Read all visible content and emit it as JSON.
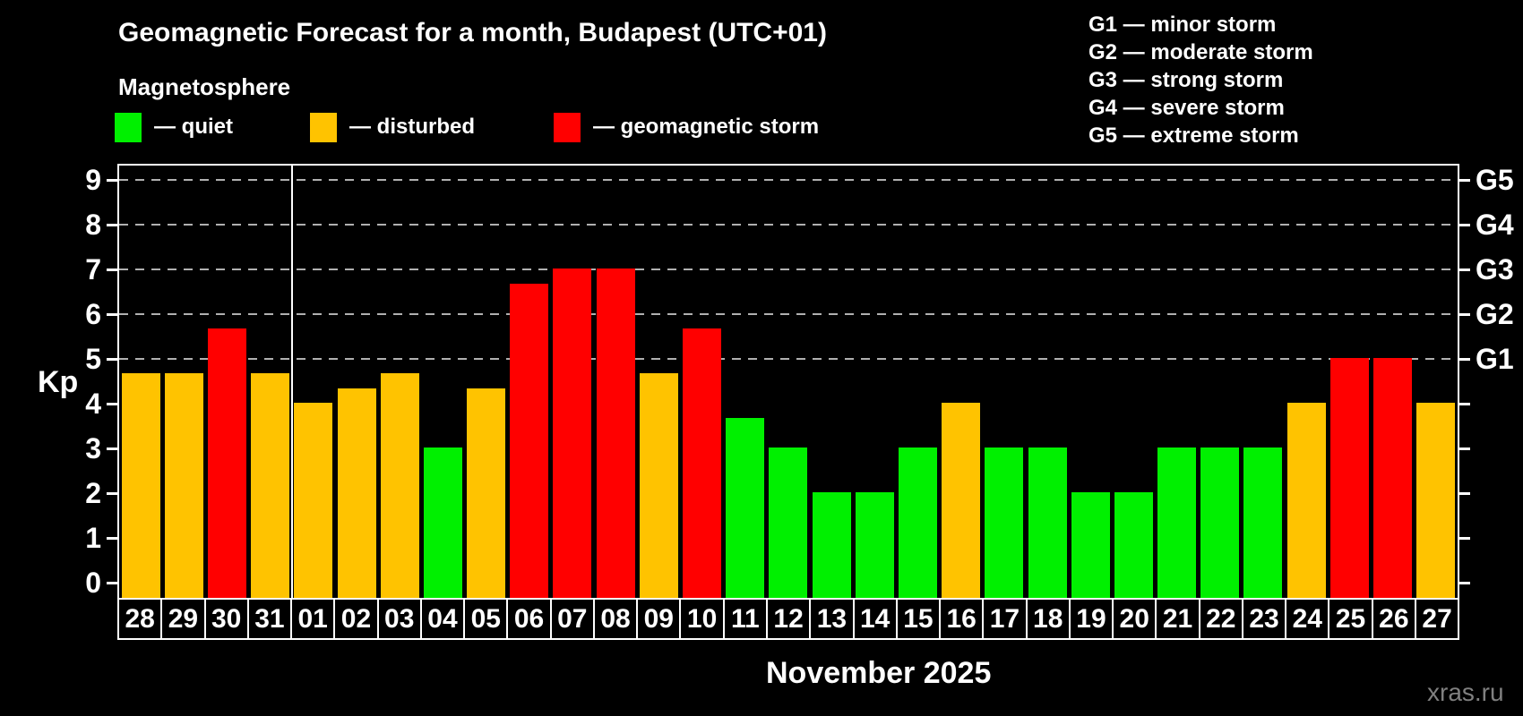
{
  "title": "Geomagnetic Forecast for a month, Budapest (UTC+01)",
  "subtitle": "Magnetosphere",
  "mag_legend": {
    "items": [
      {
        "state": "quiet",
        "label": "— quiet"
      },
      {
        "state": "disturbed",
        "label": "— disturbed"
      },
      {
        "state": "storm",
        "label": "— geomagnetic storm"
      }
    ]
  },
  "g_scale": {
    "lines": [
      {
        "label": "G1 — minor storm"
      },
      {
        "label": "G2 — moderate storm"
      },
      {
        "label": "G3 — strong storm"
      },
      {
        "label": "G4 — severe storm"
      },
      {
        "label": "G5 — extreme storm"
      }
    ]
  },
  "watermark": "xras.ru",
  "chart_data": {
    "type": "bar",
    "title": "Geomagnetic Forecast for a month, Budapest (UTC+01)",
    "xlabel": "November 2025",
    "ylabel": "Kp",
    "ylim": [
      0,
      9
    ],
    "yticks": [
      0,
      1,
      2,
      3,
      4,
      5,
      6,
      7,
      8,
      9
    ],
    "gridlines_at": [
      5,
      6,
      7,
      8,
      9
    ],
    "grid": "dashed horizontal at storm levels only",
    "legend_position": "top",
    "right_axis": [
      {
        "kp": 5,
        "label": "G1"
      },
      {
        "kp": 6,
        "label": "G2"
      },
      {
        "kp": 7,
        "label": "G3"
      },
      {
        "kp": 8,
        "label": "G4"
      },
      {
        "kp": 9,
        "label": "G5"
      }
    ],
    "month_label": "November 2025",
    "month_divider_after_index": 3,
    "colors": {
      "quiet": "#00f000",
      "disturbed": "#ffc300",
      "storm": "#ff0000"
    },
    "bars": [
      {
        "day": "28",
        "kp": 4.67,
        "state": "disturbed"
      },
      {
        "day": "29",
        "kp": 4.67,
        "state": "disturbed"
      },
      {
        "day": "30",
        "kp": 5.67,
        "state": "storm"
      },
      {
        "day": "31",
        "kp": 4.67,
        "state": "disturbed"
      },
      {
        "day": "01",
        "kp": 4.0,
        "state": "disturbed"
      },
      {
        "day": "02",
        "kp": 4.33,
        "state": "disturbed"
      },
      {
        "day": "03",
        "kp": 4.67,
        "state": "disturbed"
      },
      {
        "day": "04",
        "kp": 3.0,
        "state": "quiet"
      },
      {
        "day": "05",
        "kp": 4.33,
        "state": "disturbed"
      },
      {
        "day": "06",
        "kp": 6.67,
        "state": "storm"
      },
      {
        "day": "07",
        "kp": 7.0,
        "state": "storm"
      },
      {
        "day": "08",
        "kp": 7.0,
        "state": "storm"
      },
      {
        "day": "09",
        "kp": 4.67,
        "state": "disturbed"
      },
      {
        "day": "10",
        "kp": 5.67,
        "state": "storm"
      },
      {
        "day": "11",
        "kp": 3.67,
        "state": "quiet"
      },
      {
        "day": "12",
        "kp": 3.0,
        "state": "quiet"
      },
      {
        "day": "13",
        "kp": 2.0,
        "state": "quiet"
      },
      {
        "day": "14",
        "kp": 2.0,
        "state": "quiet"
      },
      {
        "day": "15",
        "kp": 3.0,
        "state": "quiet"
      },
      {
        "day": "16",
        "kp": 4.0,
        "state": "disturbed"
      },
      {
        "day": "17",
        "kp": 3.0,
        "state": "quiet"
      },
      {
        "day": "18",
        "kp": 3.0,
        "state": "quiet"
      },
      {
        "day": "19",
        "kp": 2.0,
        "state": "quiet"
      },
      {
        "day": "20",
        "kp": 2.0,
        "state": "quiet"
      },
      {
        "day": "21",
        "kp": 3.0,
        "state": "quiet"
      },
      {
        "day": "22",
        "kp": 3.0,
        "state": "quiet"
      },
      {
        "day": "23",
        "kp": 3.0,
        "state": "quiet"
      },
      {
        "day": "24",
        "kp": 4.0,
        "state": "disturbed"
      },
      {
        "day": "25",
        "kp": 5.0,
        "state": "storm"
      },
      {
        "day": "26",
        "kp": 5.0,
        "state": "storm"
      },
      {
        "day": "27",
        "kp": 4.0,
        "state": "disturbed"
      }
    ]
  }
}
